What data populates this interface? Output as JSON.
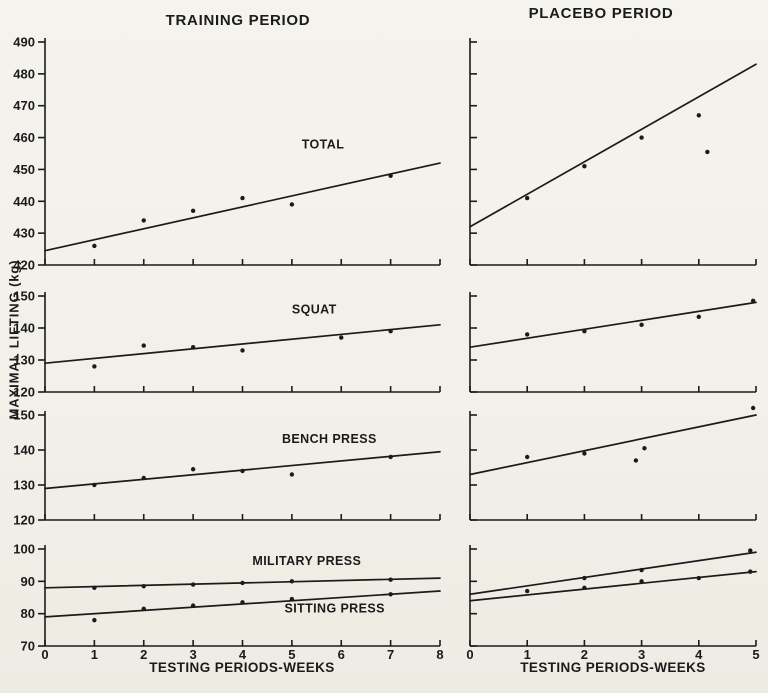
{
  "chart_data": {
    "type": "line",
    "ylabel": "MAXIMAL LIFTING (kg)",
    "xlabel": "TESTING PERIODS-WEEKS",
    "ink_color": "#1b1b1b",
    "paper_color": "#f2f0e9",
    "legend_position": "inline-labels",
    "grid": false,
    "columns": [
      {
        "title": "TRAINING PERIOD",
        "xlim": [
          0,
          8
        ],
        "xticks": [
          0,
          1,
          2,
          3,
          4,
          5,
          6,
          7,
          8
        ],
        "panels": [
          {
            "name": "total",
            "ylim": [
              420,
              490
            ],
            "yticks": [
              420,
              430,
              440,
              450,
              460,
              470,
              480,
              490
            ],
            "ytick_labels": true,
            "series": [
              {
                "name": "TOTAL",
                "line": [
                  [
                    0,
                    424.5
                  ],
                  [
                    8,
                    452
                  ]
                ],
                "points": [
                  [
                    1,
                    426
                  ],
                  [
                    2,
                    434
                  ],
                  [
                    3,
                    437
                  ],
                  [
                    4,
                    441
                  ],
                  [
                    5,
                    439
                  ],
                  [
                    7,
                    448
                  ]
                ],
                "label": {
                  "text": "TOTAL",
                  "x": 5.2,
                  "y": 456.5,
                  "anchor": "start"
                }
              }
            ]
          },
          {
            "name": "squat",
            "ylim": [
              120,
              150
            ],
            "yticks": [
              120,
              130,
              140,
              150
            ],
            "ytick_labels": true,
            "series": [
              {
                "name": "SQUAT",
                "line": [
                  [
                    0,
                    129
                  ],
                  [
                    8,
                    141
                  ]
                ],
                "points": [
                  [
                    1,
                    128
                  ],
                  [
                    2,
                    134.5
                  ],
                  [
                    3,
                    134
                  ],
                  [
                    4,
                    133
                  ],
                  [
                    6,
                    137
                  ],
                  [
                    7,
                    139
                  ]
                ],
                "label": {
                  "text": "SQUAT",
                  "x": 5.0,
                  "y": 144.5,
                  "anchor": "start"
                }
              }
            ]
          },
          {
            "name": "bench-press",
            "ylim": [
              120,
              150
            ],
            "yticks": [
              120,
              130,
              140,
              150
            ],
            "ytick_labels": true,
            "series": [
              {
                "name": "BENCH PRESS",
                "line": [
                  [
                    0,
                    129
                  ],
                  [
                    8,
                    139.5
                  ]
                ],
                "points": [
                  [
                    1,
                    130
                  ],
                  [
                    2,
                    132
                  ],
                  [
                    3,
                    134.5
                  ],
                  [
                    4,
                    134
                  ],
                  [
                    5,
                    133
                  ],
                  [
                    7,
                    138
                  ]
                ],
                "label": {
                  "text": "BENCH PRESS",
                  "x": 4.8,
                  "y": 142,
                  "anchor": "start"
                }
              }
            ]
          },
          {
            "name": "presses",
            "ylim": [
              70,
              100
            ],
            "yticks": [
              70,
              80,
              90,
              100
            ],
            "ytick_labels": true,
            "series": [
              {
                "name": "MILITARY PRESS",
                "line": [
                  [
                    0,
                    88
                  ],
                  [
                    8,
                    91
                  ]
                ],
                "points": [
                  [
                    1,
                    88
                  ],
                  [
                    2,
                    88.5
                  ],
                  [
                    3,
                    89
                  ],
                  [
                    4,
                    89.5
                  ],
                  [
                    5,
                    90
                  ],
                  [
                    7,
                    90.5
                  ]
                ],
                "label": {
                  "text": "MILITARY PRESS",
                  "x": 4.2,
                  "y": 95,
                  "anchor": "start"
                }
              },
              {
                "name": "SITTING PRESS",
                "line": [
                  [
                    0,
                    79
                  ],
                  [
                    8,
                    87
                  ]
                ],
                "points": [
                  [
                    1,
                    78
                  ],
                  [
                    2,
                    81.5
                  ],
                  [
                    3,
                    82.5
                  ],
                  [
                    4,
                    83.5
                  ],
                  [
                    5,
                    84.5
                  ],
                  [
                    7,
                    86
                  ]
                ],
                "label": {
                  "text": "SITTING PRESS",
                  "x": 4.85,
                  "y": 80.3,
                  "anchor": "start"
                }
              }
            ]
          }
        ]
      },
      {
        "title": "PLACEBO PERIOD",
        "xlim": [
          0,
          5
        ],
        "xticks": [
          0,
          1,
          2,
          3,
          4,
          5
        ],
        "panels": [
          {
            "name": "total",
            "ylim": [
              420,
              490
            ],
            "yticks": [
              420,
              430,
              440,
              450,
              460,
              470,
              480,
              490
            ],
            "ytick_labels": false,
            "series": [
              {
                "name": "TOTAL",
                "line": [
                  [
                    0,
                    432
                  ],
                  [
                    5,
                    483
                  ]
                ],
                "points": [
                  [
                    1,
                    441
                  ],
                  [
                    2,
                    451
                  ],
                  [
                    3,
                    460
                  ],
                  [
                    4,
                    467
                  ],
                  [
                    4.15,
                    455.5
                  ]
                ]
              }
            ]
          },
          {
            "name": "squat",
            "ylim": [
              120,
              150
            ],
            "yticks": [
              120,
              130,
              140,
              150
            ],
            "ytick_labels": false,
            "series": [
              {
                "name": "SQUAT",
                "line": [
                  [
                    0,
                    134
                  ],
                  [
                    5,
                    148
                  ]
                ],
                "points": [
                  [
                    1,
                    138
                  ],
                  [
                    2,
                    139
                  ],
                  [
                    3,
                    141
                  ],
                  [
                    4,
                    143.5
                  ],
                  [
                    4.95,
                    148.5
                  ]
                ]
              }
            ]
          },
          {
            "name": "bench-press",
            "ylim": [
              120,
              150
            ],
            "yticks": [
              120,
              130,
              140,
              150
            ],
            "ytick_labels": false,
            "series": [
              {
                "name": "BENCH PRESS",
                "line": [
                  [
                    0,
                    133
                  ],
                  [
                    5,
                    150
                  ]
                ],
                "points": [
                  [
                    1,
                    138
                  ],
                  [
                    2,
                    139
                  ],
                  [
                    2.9,
                    137
                  ],
                  [
                    3.05,
                    140.5
                  ],
                  [
                    4.95,
                    152
                  ]
                ]
              }
            ]
          },
          {
            "name": "presses",
            "ylim": [
              70,
              100
            ],
            "yticks": [
              70,
              80,
              90,
              100
            ],
            "ytick_labels": false,
            "series": [
              {
                "name": "MILITARY PRESS",
                "line": [
                  [
                    0,
                    86
                  ],
                  [
                    5,
                    99
                  ]
                ],
                "points": [
                  [
                    2,
                    91
                  ],
                  [
                    3,
                    93.5
                  ],
                  [
                    4.9,
                    99.5
                  ]
                ]
              },
              {
                "name": "SITTING PRESS",
                "line": [
                  [
                    0,
                    84
                  ],
                  [
                    5,
                    93
                  ]
                ],
                "points": [
                  [
                    1,
                    87
                  ],
                  [
                    2,
                    88
                  ],
                  [
                    3,
                    90
                  ],
                  [
                    4,
                    91
                  ],
                  [
                    4.9,
                    93
                  ]
                ]
              }
            ]
          }
        ]
      }
    ]
  }
}
